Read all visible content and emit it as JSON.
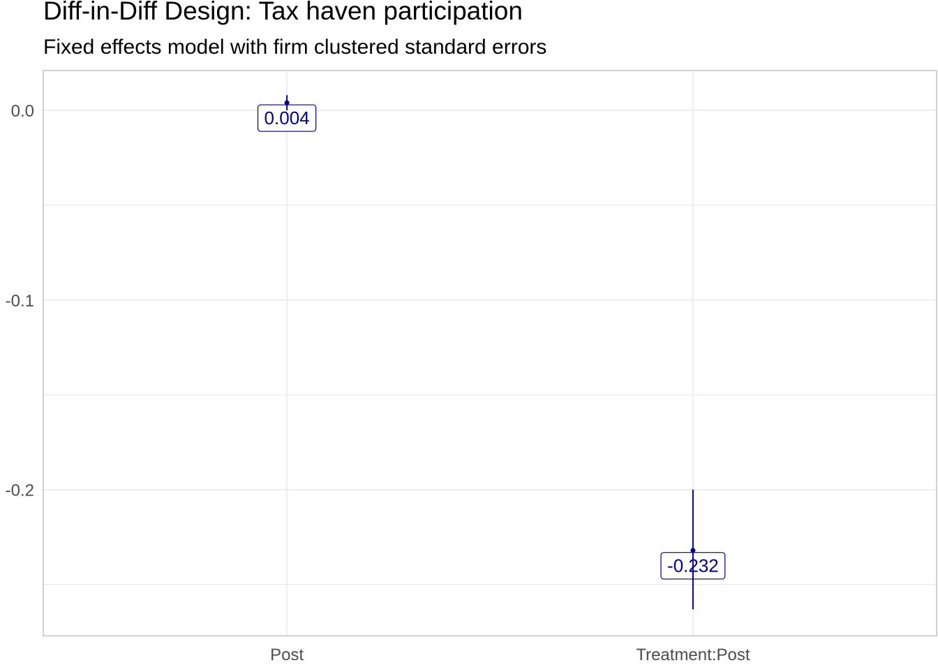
{
  "chart_data": {
    "type": "coefficient-plot",
    "title": "Diff-in-Diff Design: Tax haven participation",
    "subtitle": "Fixed effects model with firm clustered standard errors",
    "xlabel": "",
    "ylabel": "",
    "categories": [
      "Post",
      "Treatment:Post"
    ],
    "estimates": [
      0.004,
      -0.232
    ],
    "ci_low": [
      0.0,
      -0.263
    ],
    "ci_high": [
      0.008,
      -0.2
    ],
    "point_labels": [
      "0.004",
      "-0.232"
    ],
    "ylim": [
      -0.277,
      0.021
    ],
    "y_ticks": [
      0.0,
      -0.1,
      -0.2
    ],
    "y_tick_labels": [
      "0.0",
      "-0.1",
      "-0.2"
    ],
    "grid": true,
    "colors": {
      "point": "#00008b",
      "grid": "#e6e6e6",
      "panel_border": "#b3b3b3",
      "tick_text": "#4d4d4d"
    }
  }
}
